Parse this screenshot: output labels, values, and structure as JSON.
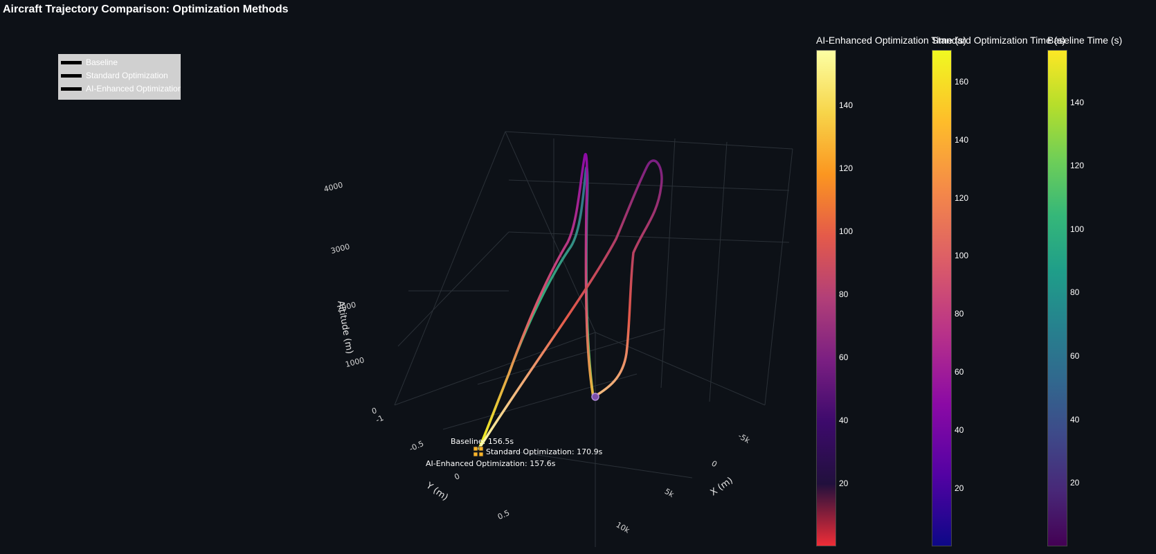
{
  "chart_data": {
    "type": "line3d",
    "title": "Aircraft Trajectory Comparison: Optimization Methods",
    "axes": {
      "x": {
        "title": "X (m)",
        "ticks": [
          "-5k",
          "0",
          "5k",
          "10k"
        ]
      },
      "y": {
        "title": "Y (m)",
        "ticks": [
          "-1",
          "-0.5",
          "0",
          "0.5"
        ]
      },
      "z": {
        "title": "Altitude (m)",
        "ticks": [
          "0",
          "1000",
          "2000",
          "3000",
          "4000"
        ]
      }
    },
    "legend": {
      "placement": "top-left",
      "entries": [
        "Baseline",
        "Standard Optimization",
        "AI-Enhanced Optimization"
      ]
    },
    "series": [
      {
        "name": "Baseline",
        "colorscale": "viridis",
        "end_time_s": 156.5,
        "end_label": "Baseline: 156.5s",
        "points": [
          [
            -5000,
            0,
            0
          ],
          [
            -5300,
            0,
            1800
          ],
          [
            -5600,
            0,
            3600
          ],
          [
            -5200,
            0,
            3900
          ],
          [
            -3000,
            0,
            3000
          ],
          [
            0,
            0,
            1500
          ],
          [
            4000,
            0,
            300
          ],
          [
            6000,
            0,
            0
          ]
        ]
      },
      {
        "name": "Standard Optimization",
        "colorscale": "plasma",
        "end_time_s": 170.9,
        "end_label": "Standard Optimization: 170.9s",
        "points": [
          [
            -5000,
            0,
            0
          ],
          [
            -5300,
            0,
            1800
          ],
          [
            -5800,
            0,
            3700
          ],
          [
            -5000,
            0,
            3600
          ],
          [
            -3000,
            0,
            2800
          ],
          [
            0,
            0,
            1400
          ],
          [
            4000,
            0,
            300
          ],
          [
            6000,
            0,
            0
          ]
        ]
      },
      {
        "name": "AI-Enhanced Optimization",
        "colorscale": "inferno",
        "end_time_s": 157.6,
        "end_label": "AI-Enhanced Optimization: 157.6s",
        "points": [
          [
            -5000,
            0,
            0
          ],
          [
            -6500,
            0,
            500
          ],
          [
            -8000,
            0,
            3000
          ],
          [
            -9000,
            0,
            4200
          ],
          [
            -8000,
            0,
            2500
          ],
          [
            -3000,
            0,
            1800
          ],
          [
            2000,
            0,
            900
          ],
          [
            6000,
            0,
            0
          ]
        ]
      }
    ],
    "colorbars": [
      {
        "title": "AI-Enhanced Optimization Time (s)",
        "colorscale": "inferno",
        "ticks": [
          "20",
          "40",
          "60",
          "80",
          "100",
          "120",
          "140"
        ],
        "range": [
          0,
          157.6
        ],
        "colors": [
          "#ef2d37",
          "#21103d",
          "#3d0a6c",
          "#7b1f82",
          "#b23f78",
          "#e45a4a",
          "#fb9620",
          "#f7d54a",
          "#fcffa4"
        ]
      },
      {
        "title": "Standard Optimization Time (s)",
        "colorscale": "plasma",
        "ticks": [
          "20",
          "40",
          "60",
          "80",
          "100",
          "120",
          "140",
          "160"
        ],
        "range": [
          0,
          170.9
        ],
        "colors": [
          "#0d0887",
          "#5302a3",
          "#8b0aa5",
          "#b83289",
          "#db5c68",
          "#f48849",
          "#febd2a",
          "#f0f921"
        ]
      },
      {
        "title": "Baseline Time (s)",
        "colorscale": "viridis",
        "ticks": [
          "20",
          "40",
          "60",
          "80",
          "100",
          "120",
          "140"
        ],
        "range": [
          0,
          156.5
        ],
        "colors": [
          "#440154",
          "#482878",
          "#3e4989",
          "#31688e",
          "#26828e",
          "#1f9e89",
          "#35b779",
          "#6ece58",
          "#b5de2b",
          "#fde725"
        ]
      }
    ]
  }
}
